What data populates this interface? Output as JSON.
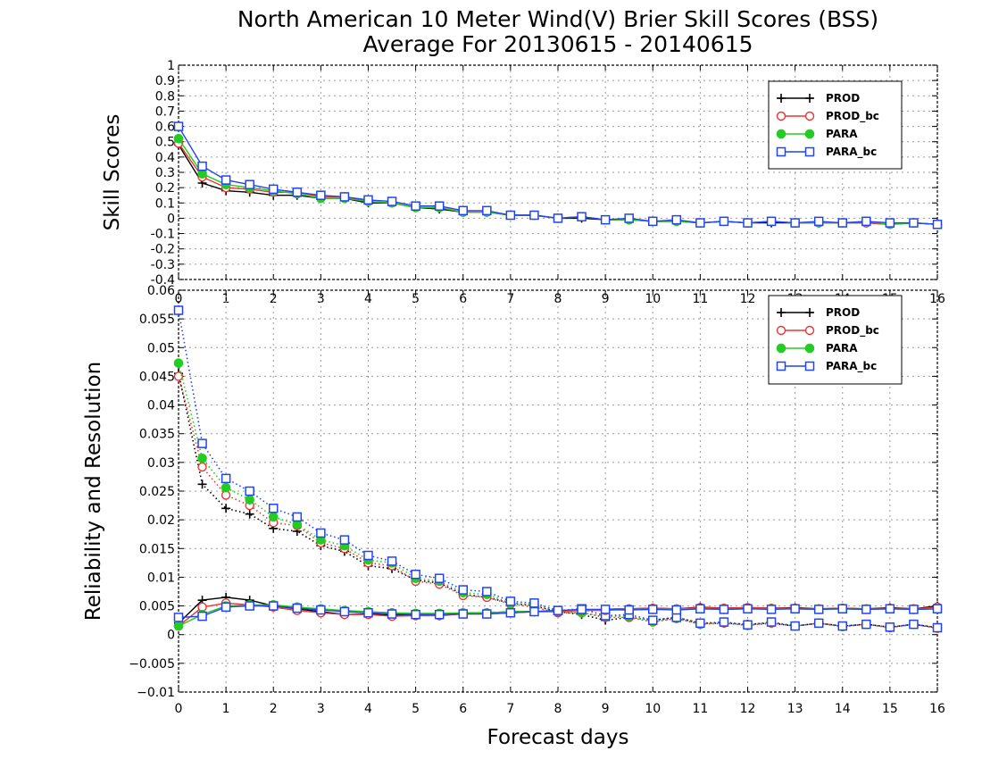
{
  "title_line1": "North American 10 Meter Wind(V) Brier Skill Scores (BSS)",
  "title_line2": "Average For 20130615 - 20140615",
  "colors": {
    "PROD": "#000000",
    "PROD_bc": "#ee3333",
    "PARA": "#22cc22",
    "PARA_bc": "#2244ee"
  },
  "chart_data": [
    {
      "type": "line",
      "ylabel": "Skill Scores",
      "xlabel": "",
      "xlim": [
        0,
        16
      ],
      "ylim": [
        -0.4,
        1
      ],
      "x_ticks": [
        0,
        1,
        2,
        3,
        4,
        5,
        6,
        7,
        8,
        9,
        10,
        11,
        12,
        13,
        14,
        15,
        16
      ],
      "y_ticks": [
        -0.4,
        -0.3,
        -0.2,
        -0.1,
        0,
        0.1,
        0.2,
        0.3,
        0.4,
        0.5,
        0.6,
        0.7,
        0.8,
        0.9,
        1
      ],
      "y_tick_labels": [
        "-0.4",
        "-0.3",
        "-0.2",
        "-0.1",
        "0",
        "0.1",
        "0.2",
        "0.3",
        "0.4",
        "0.5",
        "0.6",
        "0.7",
        "0.8",
        "0.9",
        "1"
      ],
      "grid": true,
      "legend": "top-right",
      "x": [
        0,
        0.5,
        1,
        1.5,
        2,
        2.5,
        3,
        3.5,
        4,
        4.5,
        5,
        5.5,
        6,
        6.5,
        7,
        7.5,
        8,
        8.5,
        9,
        9.5,
        10,
        10.5,
        11,
        11.5,
        12,
        12.5,
        13,
        13.5,
        14,
        14.5,
        15,
        15.5,
        16
      ],
      "series": [
        {
          "name": "PROD",
          "marker": "plus",
          "line": "solid",
          "values": [
            0.48,
            0.23,
            0.18,
            0.17,
            0.15,
            0.15,
            0.13,
            0.13,
            0.1,
            0.1,
            0.07,
            0.06,
            0.04,
            0.04,
            0.02,
            0.02,
            0.0,
            0.0,
            -0.01,
            -0.01,
            -0.02,
            -0.02,
            -0.03,
            -0.02,
            -0.03,
            -0.03,
            -0.03,
            -0.03,
            -0.03,
            -0.03,
            -0.04,
            -0.03,
            -0.04
          ]
        },
        {
          "name": "PROD_bc",
          "marker": "open-circle",
          "line": "solid",
          "values": [
            0.49,
            0.27,
            0.2,
            0.19,
            0.17,
            0.17,
            0.14,
            0.14,
            0.11,
            0.1,
            0.07,
            0.07,
            0.04,
            0.04,
            0.02,
            0.02,
            0.0,
            0.01,
            -0.01,
            -0.01,
            -0.02,
            -0.02,
            -0.03,
            -0.02,
            -0.03,
            -0.02,
            -0.03,
            -0.03,
            -0.03,
            -0.03,
            -0.04,
            -0.03,
            -0.04
          ]
        },
        {
          "name": "PARA",
          "marker": "filled-circle",
          "line": "solid",
          "values": [
            0.52,
            0.29,
            0.22,
            0.2,
            0.18,
            0.16,
            0.13,
            0.13,
            0.11,
            0.1,
            0.07,
            0.07,
            0.04,
            0.04,
            0.02,
            0.02,
            0.0,
            0.01,
            -0.01,
            -0.01,
            -0.02,
            -0.02,
            -0.03,
            -0.02,
            -0.03,
            -0.02,
            -0.03,
            -0.03,
            -0.03,
            -0.02,
            -0.04,
            -0.03,
            -0.04
          ]
        },
        {
          "name": "PARA_bc",
          "marker": "open-square",
          "line": "solid",
          "values": [
            0.6,
            0.34,
            0.25,
            0.22,
            0.19,
            0.17,
            0.15,
            0.14,
            0.12,
            0.11,
            0.08,
            0.08,
            0.05,
            0.05,
            0.02,
            0.02,
            0.0,
            0.01,
            -0.01,
            0.0,
            -0.02,
            -0.01,
            -0.03,
            -0.02,
            -0.03,
            -0.02,
            -0.03,
            -0.02,
            -0.03,
            -0.02,
            -0.03,
            -0.03,
            -0.04
          ]
        }
      ]
    },
    {
      "type": "line",
      "ylabel": "Reliability and Resolution",
      "xlabel": "Forecast days",
      "xlim": [
        0,
        16
      ],
      "ylim": [
        -0.01,
        0.06
      ],
      "x_ticks": [
        0,
        1,
        2,
        3,
        4,
        5,
        6,
        7,
        8,
        9,
        10,
        11,
        12,
        13,
        14,
        15,
        16
      ],
      "y_ticks": [
        -0.01,
        -0.005,
        0,
        0.005,
        0.01,
        0.015,
        0.02,
        0.025,
        0.03,
        0.035,
        0.04,
        0.045,
        0.05,
        0.055,
        0.06
      ],
      "y_tick_labels": [
        "−0.01",
        "−0.005",
        "0",
        "0.005",
        "0.01",
        "0.015",
        "0.02",
        "0.025",
        "0.03",
        "0.035",
        "0.04",
        "0.045",
        "0.05",
        "0.055",
        "0.06"
      ],
      "grid": true,
      "legend": "top-right",
      "x": [
        0,
        0.5,
        1,
        1.5,
        2,
        2.5,
        3,
        3.5,
        4,
        4.5,
        5,
        5.5,
        6,
        6.5,
        7,
        7.5,
        8,
        8.5,
        9,
        9.5,
        10,
        10.5,
        11,
        11.5,
        12,
        12.5,
        13,
        13.5,
        14,
        14.5,
        15,
        15.5,
        16
      ],
      "series": [
        {
          "name": "PROD",
          "marker": "plus",
          "line": "dotted",
          "values": [
            0.0455,
            0.0262,
            0.022,
            0.021,
            0.0185,
            0.018,
            0.0155,
            0.0145,
            0.012,
            0.0115,
            0.0095,
            0.009,
            0.007,
            0.0065,
            0.0055,
            0.005,
            0.004,
            0.0035,
            0.0025,
            0.003,
            0.0025,
            0.003,
            0.002,
            0.002,
            0.0018,
            0.002,
            0.0015,
            0.002,
            0.0015,
            0.0018,
            0.0013,
            0.0018,
            0.0012
          ]
        },
        {
          "name": "PROD_bc",
          "marker": "open-circle",
          "line": "dotted",
          "values": [
            0.045,
            0.0292,
            0.0243,
            0.0225,
            0.0195,
            0.019,
            0.016,
            0.015,
            0.0125,
            0.012,
            0.0093,
            0.0088,
            0.0068,
            0.0065,
            0.0053,
            0.0048,
            0.0038,
            0.0038,
            0.003,
            0.003,
            0.0022,
            0.0028,
            0.0018,
            0.002,
            0.0016,
            0.002,
            0.0015,
            0.002,
            0.0014,
            0.0018,
            0.0012,
            0.0018,
            0.0011
          ]
        },
        {
          "name": "PARA",
          "marker": "filled-circle",
          "line": "dotted",
          "values": [
            0.0473,
            0.0307,
            0.0256,
            0.0235,
            0.0205,
            0.0192,
            0.0165,
            0.0155,
            0.013,
            0.0125,
            0.0098,
            0.0093,
            0.0073,
            0.007,
            0.0055,
            0.0052,
            0.004,
            0.0038,
            0.0032,
            0.0032,
            0.0023,
            0.0028,
            0.0018,
            0.0022,
            0.0016,
            0.0022,
            0.0015,
            0.002,
            0.0014,
            0.0018,
            0.0013,
            0.0018,
            0.0012
          ]
        },
        {
          "name": "PARA_bc",
          "marker": "open-square",
          "line": "dotted",
          "values": [
            0.0565,
            0.0333,
            0.0272,
            0.025,
            0.022,
            0.0205,
            0.0177,
            0.0165,
            0.0138,
            0.0128,
            0.0105,
            0.0098,
            0.0078,
            0.0075,
            0.0058,
            0.0055,
            0.0042,
            0.0045,
            0.0033,
            0.0035,
            0.0025,
            0.003,
            0.002,
            0.0022,
            0.0017,
            0.0022,
            0.0015,
            0.002,
            0.0015,
            0.0018,
            0.0013,
            0.0018,
            0.0012
          ]
        },
        {
          "name": "PROD",
          "marker": "plus",
          "line": "solid",
          "legend": false,
          "values": [
            0.002,
            0.006,
            0.0065,
            0.006,
            0.005,
            0.0045,
            0.004,
            0.0035,
            0.0036,
            0.0034,
            0.0035,
            0.0035,
            0.0038,
            0.0038,
            0.004,
            0.004,
            0.0042,
            0.0042,
            0.0044,
            0.0045,
            0.0046,
            0.0045,
            0.0048,
            0.0046,
            0.0047,
            0.0046,
            0.0047,
            0.0045,
            0.0046,
            0.0045,
            0.0047,
            0.0045,
            0.005
          ]
        },
        {
          "name": "PROD_bc",
          "marker": "open-circle",
          "line": "solid",
          "legend": false,
          "values": [
            0.0015,
            0.0048,
            0.0055,
            0.0052,
            0.0048,
            0.0042,
            0.0038,
            0.0035,
            0.0035,
            0.0032,
            0.0033,
            0.0033,
            0.0036,
            0.0036,
            0.0038,
            0.004,
            0.004,
            0.0042,
            0.0042,
            0.0045,
            0.0046,
            0.0045,
            0.0047,
            0.0046,
            0.0047,
            0.0046,
            0.0046,
            0.0045,
            0.0046,
            0.0045,
            0.0046,
            0.0045,
            0.0048
          ]
        },
        {
          "name": "PARA",
          "marker": "filled-circle",
          "line": "solid",
          "legend": false,
          "values": [
            0.0015,
            0.0035,
            0.005,
            0.0052,
            0.0052,
            0.0048,
            0.0045,
            0.0042,
            0.004,
            0.0038,
            0.0037,
            0.0037,
            0.0038,
            0.0038,
            0.004,
            0.004,
            0.0042,
            0.0043,
            0.0043,
            0.0043,
            0.0044,
            0.0044,
            0.0045,
            0.0044,
            0.0045,
            0.0045,
            0.0045,
            0.0044,
            0.0045,
            0.0044,
            0.0045,
            0.0044,
            0.0045
          ]
        },
        {
          "name": "PARA_bc",
          "marker": "open-square",
          "line": "solid",
          "legend": false,
          "values": [
            0.003,
            0.0032,
            0.0048,
            0.005,
            0.005,
            0.0046,
            0.0043,
            0.004,
            0.0038,
            0.0036,
            0.0035,
            0.0035,
            0.0036,
            0.0036,
            0.0038,
            0.004,
            0.0042,
            0.0044,
            0.0044,
            0.0043,
            0.0044,
            0.0043,
            0.0045,
            0.0044,
            0.0045,
            0.0044,
            0.0045,
            0.0044,
            0.0045,
            0.0044,
            0.0045,
            0.0044,
            0.0045
          ]
        }
      ]
    }
  ]
}
